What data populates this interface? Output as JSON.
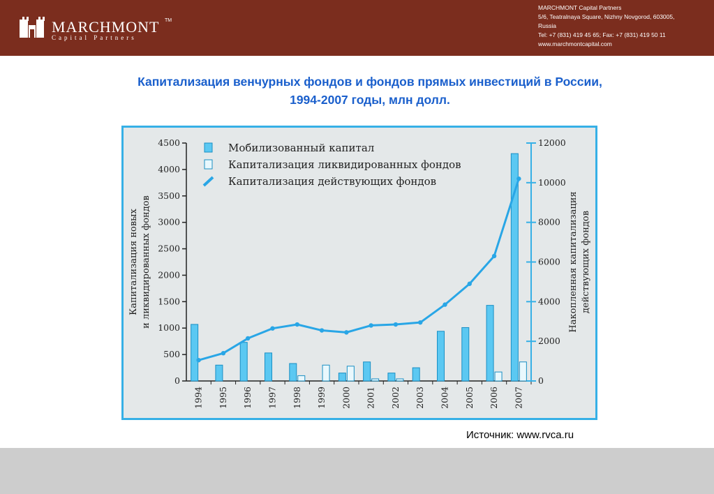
{
  "header": {
    "brand_name": "MARCHMONT",
    "brand_sub": "Capital Partners",
    "tm": "TM",
    "contacts": [
      "MARCHMONT Capital Partners",
      "5/6, Teatralnaya Square, Nizhny Novgorod, 603005,",
      "Russia",
      "Tel: +7 (831) 419 45 65; Fax: +7 (831) 419 50 11",
      "www.marchmontcapital.com"
    ]
  },
  "title_line1": "Капитализация венчурных фондов и фондов прямых инвестиций в России,",
  "title_line2": "1994-2007 годы, млн долл.",
  "source": "Источник: www.rvca.ru",
  "colors": {
    "header_bg": "#7b2d1e",
    "title": "#1a5fcc",
    "accent": "#36b0e6",
    "bar_mobilized": "#5bc8f2",
    "bar_liquidated": "#e9f8fd",
    "line": "#29a6e6",
    "chart_bg": "#e4e8e9",
    "footer": "#cdcdcd"
  },
  "chart_data": {
    "type": "bar",
    "categories": [
      "1994",
      "1995",
      "1996",
      "1997",
      "1998",
      "1999",
      "2000",
      "2001",
      "2002",
      "2003",
      "2004",
      "2005",
      "2006",
      "2007"
    ],
    "series": [
      {
        "name": "Мобилизованный капитал",
        "type": "bar",
        "axis": "left",
        "values": [
          1070,
          300,
          730,
          530,
          330,
          0,
          150,
          360,
          150,
          250,
          940,
          1010,
          1430,
          4300
        ]
      },
      {
        "name": "Капитализация ликвидированных фондов",
        "type": "bar",
        "axis": "left",
        "values": [
          0,
          0,
          0,
          0,
          100,
          300,
          280,
          40,
          40,
          0,
          0,
          0,
          170,
          360
        ]
      },
      {
        "name": "Капитализация действующих фондов",
        "type": "line",
        "axis": "right",
        "values": [
          1050,
          1400,
          2150,
          2650,
          2850,
          2550,
          2450,
          2800,
          2850,
          2950,
          3850,
          4900,
          6300,
          10200
        ]
      }
    ],
    "ylabel_left": "Капитализация новых и ликвидированных фондов",
    "ylabel_right": "Накопленная капитализация действующих фондов",
    "ylim_left": [
      0,
      4500
    ],
    "ylim_right": [
      0,
      12000
    ],
    "yticks_left": [
      0,
      500,
      1000,
      1500,
      2000,
      2500,
      3000,
      3500,
      4000,
      4500
    ],
    "yticks_right": [
      0,
      2000,
      4000,
      6000,
      8000,
      10000,
      12000
    ],
    "legend_position": "top-left",
    "grid": false
  }
}
